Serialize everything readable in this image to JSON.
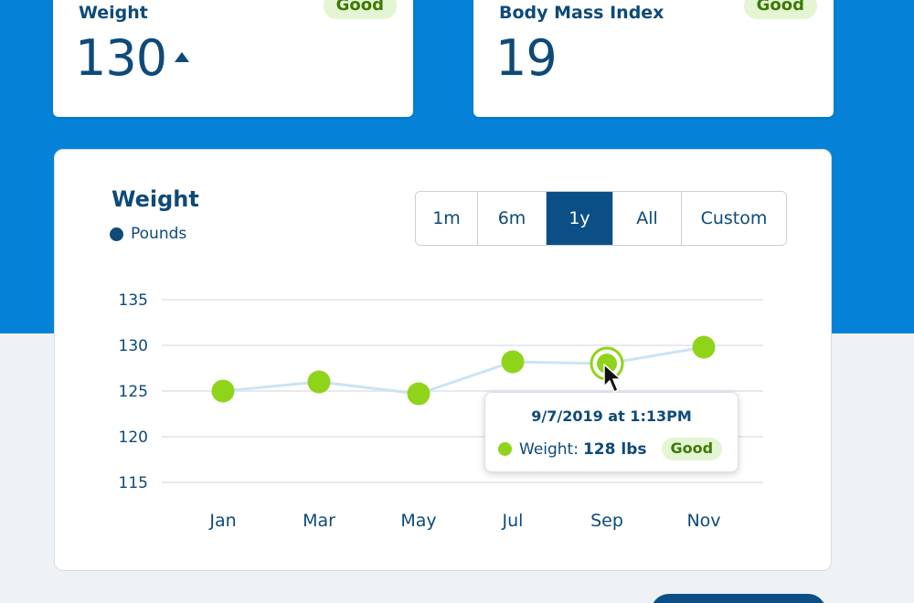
{
  "stats": {
    "weight": {
      "label": "Weight",
      "value": "130",
      "badge": "Good",
      "trend": "up"
    },
    "bmi": {
      "label": "Body Mass Index",
      "value": "19",
      "badge": "Good"
    }
  },
  "chart_card": {
    "title": "Weight",
    "legend": "Pounds",
    "range_buttons": [
      {
        "label": "1m",
        "active": false
      },
      {
        "label": "6m",
        "active": false
      },
      {
        "label": "1y",
        "active": true
      },
      {
        "label": "All",
        "active": false
      },
      {
        "label": "Custom",
        "active": false
      }
    ]
  },
  "chart_data": {
    "type": "line",
    "title": "Weight",
    "ylabel": "",
    "xlabel": "",
    "y_ticks": [
      135,
      130,
      125,
      120,
      115
    ],
    "x_tick_labels": [
      "Jan",
      "Mar",
      "May",
      "Jul",
      "Sep",
      "Nov"
    ],
    "ylim": [
      115,
      135
    ],
    "series": [
      {
        "name": "Pounds",
        "values": [
          125,
          126,
          124.7,
          128.2,
          128,
          129.8
        ]
      }
    ],
    "highlighted_index": 4,
    "grid": true
  },
  "tooltip": {
    "date": "9/7/2019 at 1:13PM",
    "label": "Weight:",
    "value": "128 lbs",
    "badge": "Good"
  },
  "colors": {
    "header_blue": "#0582d8",
    "navy": "#0d4a7a",
    "point_green": "#8fd41a",
    "badge_bg": "#e4f5d3",
    "badge_text": "#3d7a06",
    "line": "#cde3f3"
  }
}
